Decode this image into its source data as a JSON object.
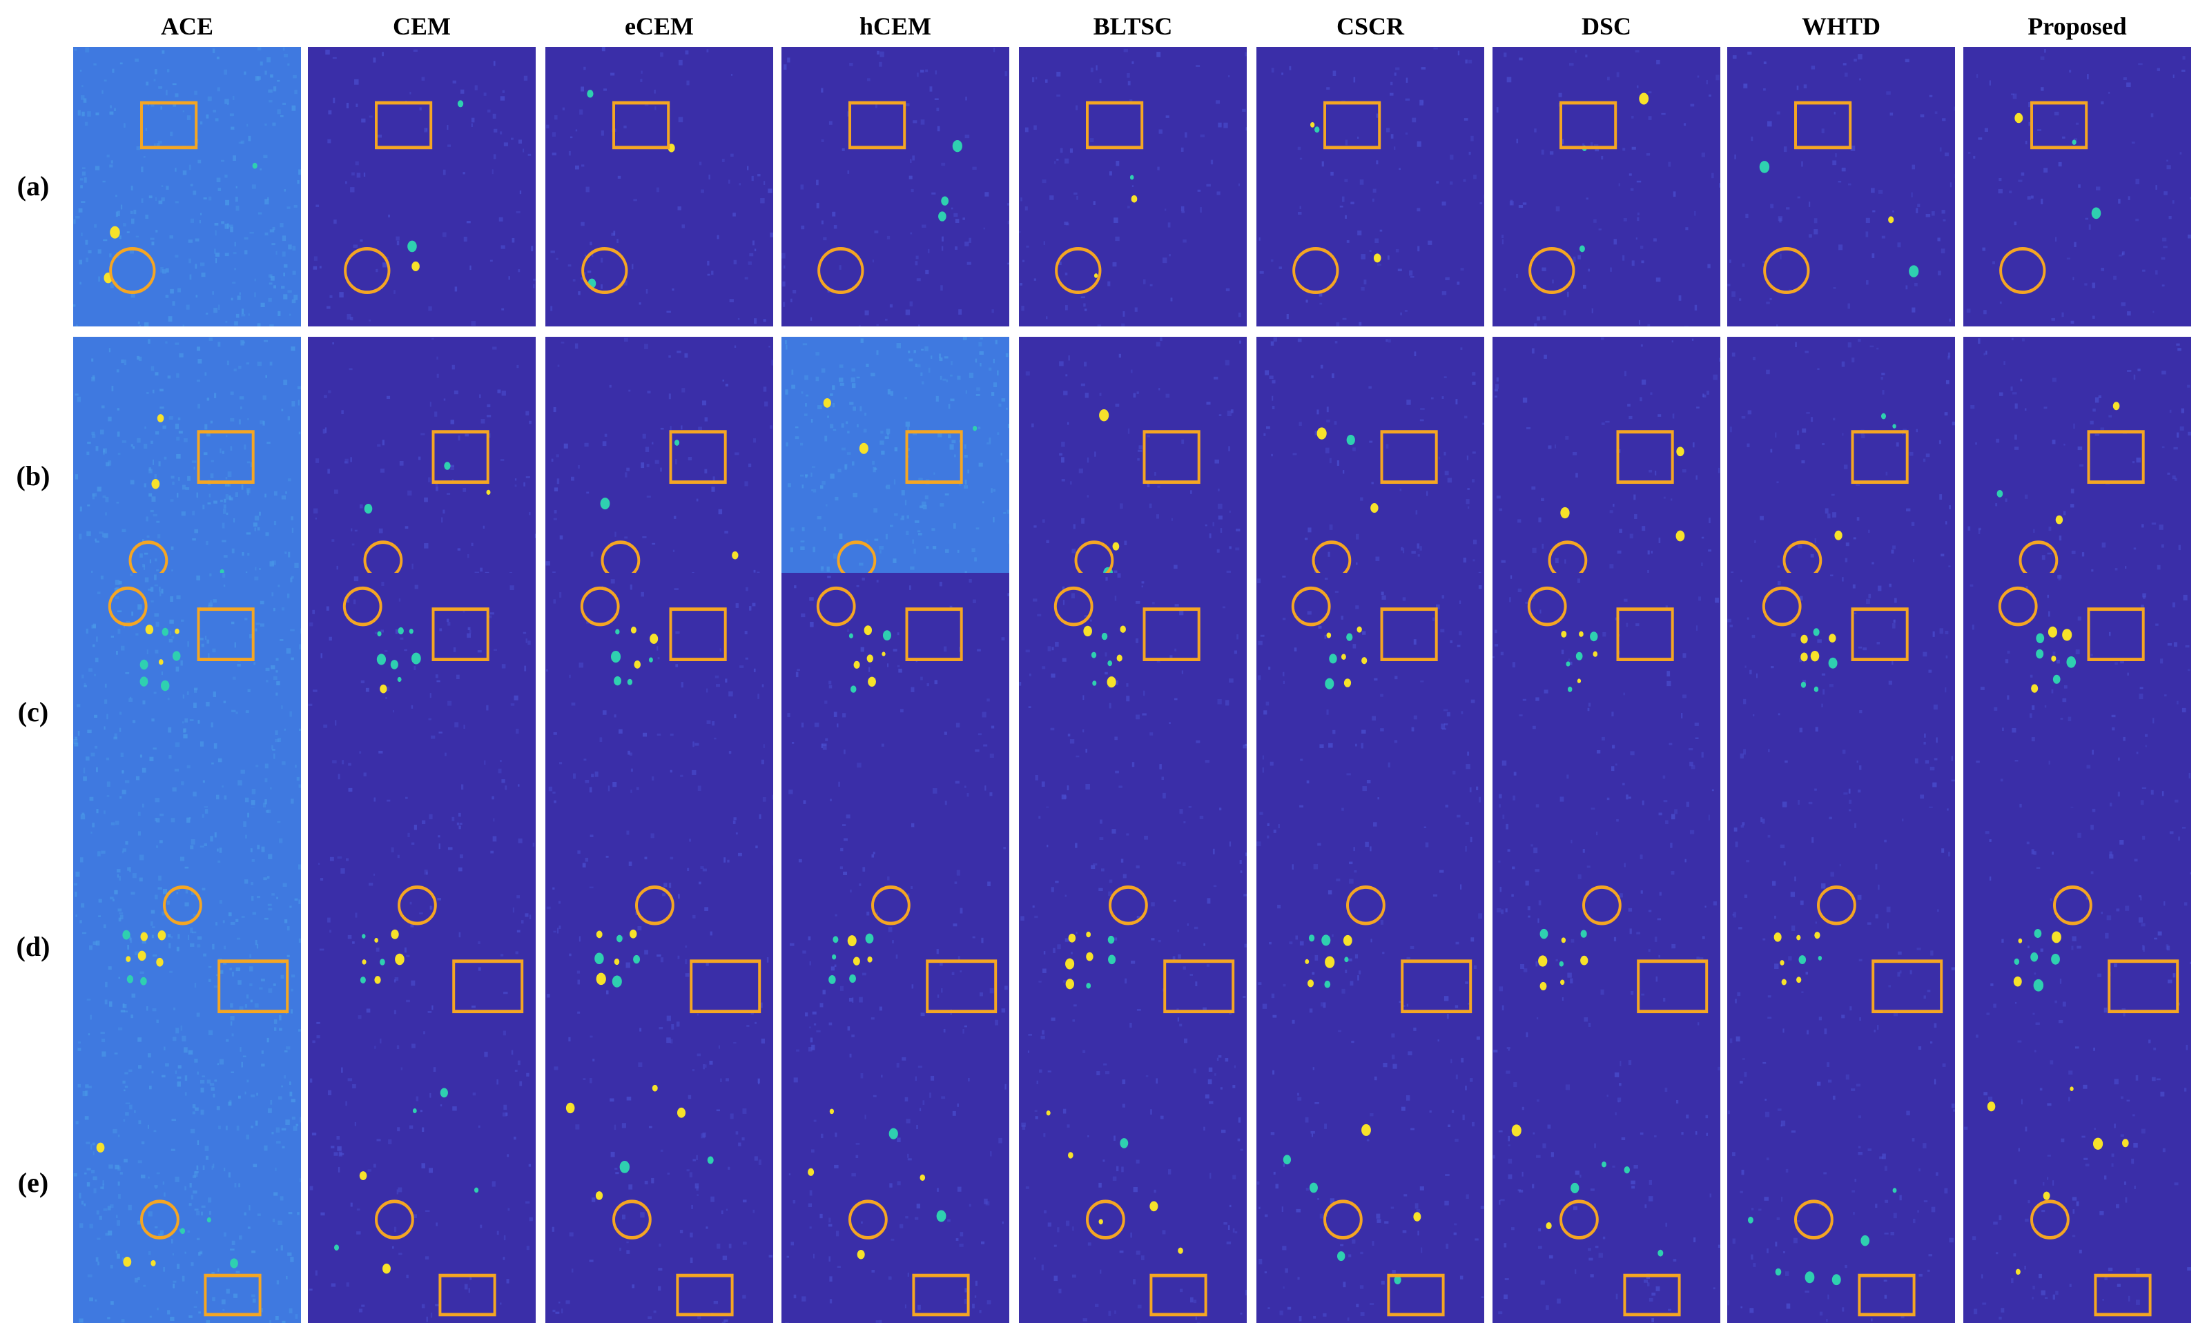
{
  "figure": {
    "columns": [
      "ACE",
      "CEM",
      "eCEM",
      "hCEM",
      "BLTSC",
      "CSCR",
      "DSC",
      "WHTD",
      "Proposed"
    ],
    "rows": [
      "(a)",
      "(b)",
      "(c)",
      "(d)",
      "(e)"
    ]
  },
  "colors": {
    "background_low": "#3a2ea8",
    "background_ace": "#3f79e0",
    "target_high": "#f7e22a",
    "target_mid": "#2fd0b0",
    "marker": "#f5a623"
  },
  "markers": {
    "circle": "target-circle",
    "rectangle": "background-rectangle"
  }
}
